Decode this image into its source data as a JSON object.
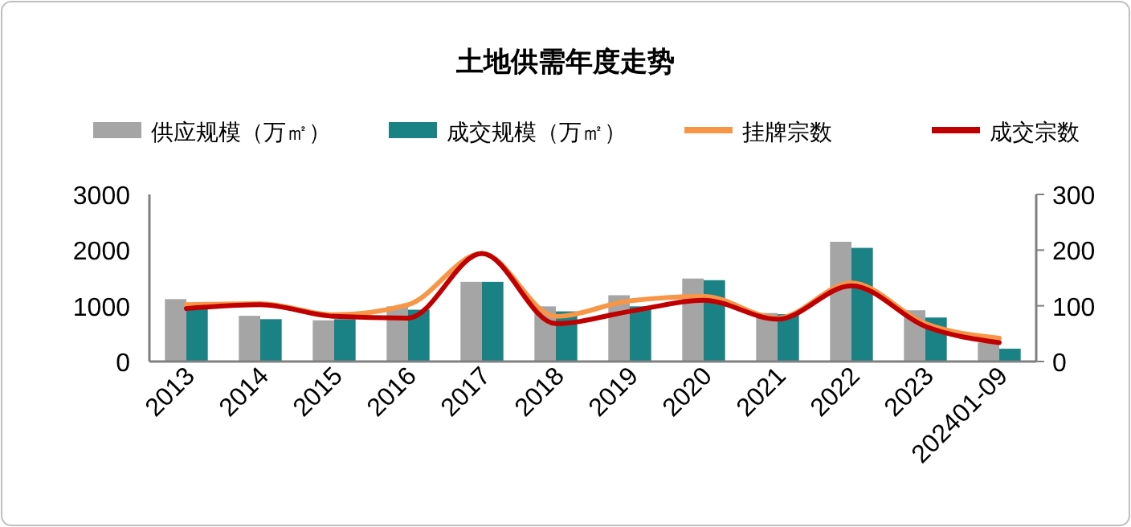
{
  "chart_data": {
    "type": "bar",
    "title": "土地供需年度走势",
    "categories": [
      "2013",
      "2014",
      "2015",
      "2016",
      "2017",
      "2018",
      "2019",
      "2020",
      "2021",
      "2022",
      "2023",
      "202401-09"
    ],
    "series": [
      {
        "name": "供应规模（万㎡）",
        "color": "#a5a5a5",
        "values": [
          1120,
          820,
          740,
          990,
          1430,
          990,
          1190,
          1490,
          870,
          2150,
          920,
          340
        ]
      },
      {
        "name": "成交规模（万㎡）",
        "color": "#1a8285",
        "values": [
          940,
          760,
          760,
          930,
          1430,
          900,
          990,
          1460,
          850,
          2040,
          790,
          230
        ]
      },
      {
        "name": "挂牌宗数",
        "type": "line",
        "axis": "y2",
        "color": "#f79646",
        "values": [
          102,
          104,
          84,
          102,
          194,
          81,
          109,
          117,
          78,
          141,
          68,
          42
        ]
      },
      {
        "name": "成交宗数",
        "type": "line",
        "axis": "y2",
        "color": "#c00000",
        "values": [
          95,
          102,
          81,
          78,
          194,
          68,
          90,
          110,
          76,
          136,
          63,
          34
        ]
      }
    ],
    "ylim": [
      0,
      3000
    ],
    "yticks": [
      0,
      1000,
      2000,
      3000
    ],
    "y2lim": [
      0,
      300
    ],
    "y2ticks": [
      0,
      100,
      200,
      300
    ],
    "grid": false,
    "legend": "top"
  }
}
